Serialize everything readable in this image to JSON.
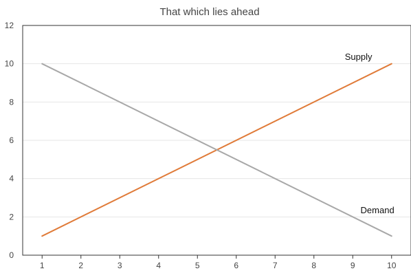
{
  "chart_data": {
    "type": "line",
    "title": "That which lies ahead",
    "xlabel": "",
    "ylabel": "",
    "x": [
      1,
      10
    ],
    "xticks": [
      1,
      2,
      3,
      4,
      5,
      6,
      7,
      8,
      9,
      10
    ],
    "yticks": [
      0,
      2,
      4,
      6,
      8,
      10,
      12
    ],
    "xlim": [
      0.5,
      10.5
    ],
    "ylim": [
      0,
      12
    ],
    "grid": true,
    "legend": "none",
    "series": [
      {
        "name": "Supply",
        "x": [
          1,
          10
        ],
        "values": [
          1,
          10
        ],
        "color": "#e07b39"
      },
      {
        "name": "Demand",
        "x": [
          1,
          10
        ],
        "values": [
          10,
          1
        ],
        "color": "#a8a8a8"
      }
    ],
    "annotations": [
      {
        "text": "Supply",
        "x": 9.5,
        "y": 10.2,
        "anchor": "end"
      },
      {
        "text": "Demand",
        "x": 9.2,
        "y": 2.2,
        "anchor": "start"
      }
    ]
  }
}
